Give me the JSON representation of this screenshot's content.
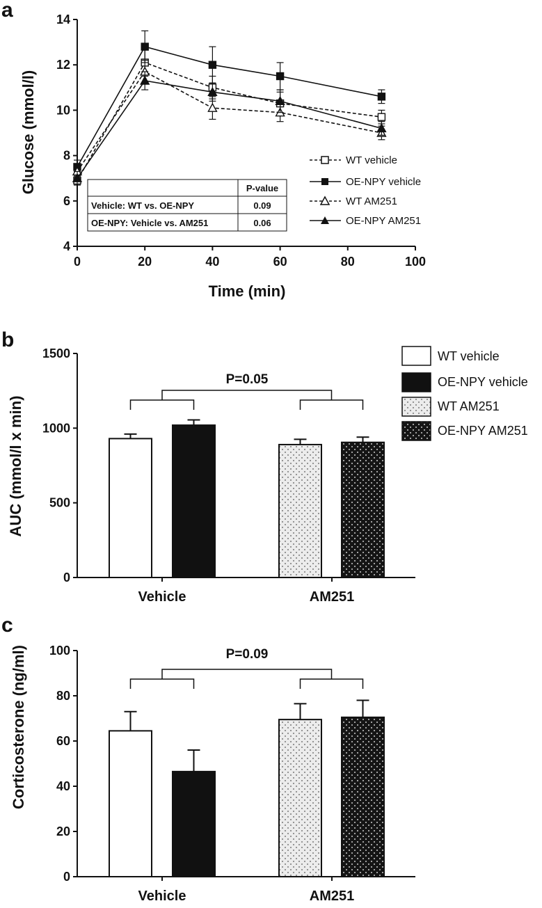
{
  "chart_data": [
    {
      "panel": "a",
      "type": "line",
      "xlabel": "Time (min)",
      "ylabel": "Glucose (mmol/l)",
      "xlim": [
        0,
        100
      ],
      "ylim": [
        4,
        14
      ],
      "xticks": [
        "0",
        "20",
        "40",
        "60",
        "80",
        "100"
      ],
      "yticks": [
        "4",
        "6",
        "8",
        "10",
        "12",
        "14"
      ],
      "x": [
        0,
        20,
        40,
        60,
        90
      ],
      "series": [
        {
          "name": "WT vehicle",
          "marker": "open-square",
          "dash": "dashed",
          "values": [
            6.9,
            12.1,
            11.0,
            10.3,
            9.7
          ],
          "err": [
            0.2,
            0.6,
            0.5,
            0.5,
            0.3
          ]
        },
        {
          "name": "OE-NPY vehicle",
          "marker": "filled-square",
          "dash": "solid",
          "values": [
            7.5,
            12.8,
            12.0,
            11.5,
            10.6
          ],
          "err": [
            0.3,
            0.7,
            0.8,
            0.6,
            0.3
          ]
        },
        {
          "name": "WT AM251",
          "marker": "open-triangle",
          "dash": "dashed",
          "values": [
            7.3,
            11.7,
            10.1,
            9.9,
            9.0
          ],
          "err": [
            0.3,
            0.5,
            0.5,
            0.4,
            0.3
          ]
        },
        {
          "name": "OE-NPY AM251",
          "marker": "filled-triangle",
          "dash": "solid",
          "values": [
            7.0,
            11.3,
            10.8,
            10.4,
            9.2
          ],
          "err": [
            0.3,
            0.4,
            0.4,
            0.5,
            0.3
          ]
        }
      ],
      "legend_position": "lower-right",
      "table": {
        "header": [
          "",
          "P-value"
        ],
        "rows": [
          [
            "Vehicle: WT vs. OE-NPY",
            "0.09"
          ],
          [
            "OE-NPY: Vehicle vs. AM251",
            "0.06"
          ]
        ]
      }
    },
    {
      "panel": "b",
      "type": "bar",
      "ylabel": "AUC (mmol/l x min)",
      "ylim": [
        0,
        1500
      ],
      "yticks": [
        "0",
        "500",
        "1000",
        "1500"
      ],
      "categories": [
        "Vehicle",
        "AM251"
      ],
      "series": [
        {
          "name": "WT vehicle",
          "fill": "white",
          "values": [
            930,
            null
          ],
          "err": [
            30,
            null
          ]
        },
        {
          "name": "OE-NPY vehicle",
          "fill": "black",
          "values": [
            1020,
            null
          ],
          "err": [
            35,
            null
          ]
        },
        {
          "name": "WT AM251",
          "fill": "light-dots",
          "values": [
            null,
            890
          ],
          "err": [
            null,
            35
          ]
        },
        {
          "name": "OE-NPY AM251",
          "fill": "dark-dots",
          "values": [
            null,
            905
          ],
          "err": [
            null,
            35
          ]
        }
      ],
      "legend_position": "top-right",
      "annotation": "P=0.05"
    },
    {
      "panel": "c",
      "type": "bar",
      "ylabel": "Corticosterone (ng/ml)",
      "ylim": [
        0,
        100
      ],
      "yticks": [
        "0",
        "20",
        "40",
        "60",
        "80",
        "100"
      ],
      "categories": [
        "Vehicle",
        "AM251"
      ],
      "series": [
        {
          "name": "WT vehicle",
          "fill": "white",
          "values": [
            64.5,
            null
          ],
          "err": [
            8.5,
            null
          ]
        },
        {
          "name": "OE-NPY vehicle",
          "fill": "black",
          "values": [
            46.5,
            null
          ],
          "err": [
            9.5,
            null
          ]
        },
        {
          "name": "WT AM251",
          "fill": "light-dots",
          "values": [
            null,
            69.5
          ],
          "err": [
            null,
            7.0
          ]
        },
        {
          "name": "OE-NPY AM251",
          "fill": "dark-dots",
          "values": [
            null,
            70.5
          ],
          "err": [
            null,
            7.5
          ]
        }
      ],
      "annotation": "P=0.09"
    }
  ]
}
